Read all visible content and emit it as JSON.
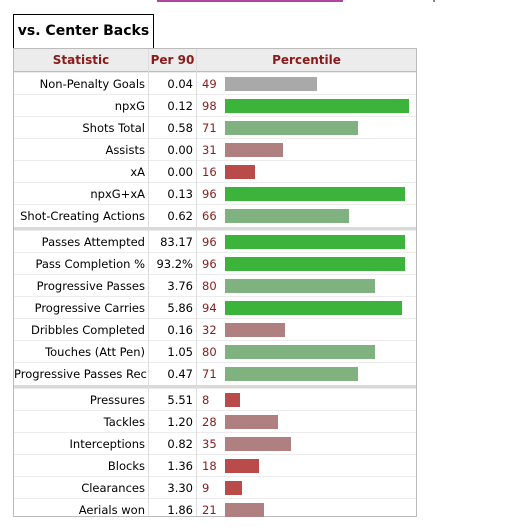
{
  "tab": {
    "label": "vs. Center Backs"
  },
  "table": {
    "headers": {
      "statistic": "Statistic",
      "per90": "Per 90",
      "percentile": "Percentile"
    },
    "groups": [
      [
        {
          "stat": "Non-Penalty Goals",
          "per90": "0.04",
          "pct": "49"
        },
        {
          "stat": "npxG",
          "per90": "0.12",
          "pct": "98"
        },
        {
          "stat": "Shots Total",
          "per90": "0.58",
          "pct": "71"
        },
        {
          "stat": "Assists",
          "per90": "0.00",
          "pct": "31"
        },
        {
          "stat": "xA",
          "per90": "0.00",
          "pct": "16"
        },
        {
          "stat": "npxG+xA",
          "per90": "0.13",
          "pct": "96"
        },
        {
          "stat": "Shot-Creating Actions",
          "per90": "0.62",
          "pct": "66"
        }
      ],
      [
        {
          "stat": "Passes Attempted",
          "per90": "83.17",
          "pct": "96"
        },
        {
          "stat": "Pass Completion %",
          "per90": "93.2%",
          "pct": "96"
        },
        {
          "stat": "Progressive Passes",
          "per90": "3.76",
          "pct": "80"
        },
        {
          "stat": "Progressive Carries",
          "per90": "5.86",
          "pct": "94"
        },
        {
          "stat": "Dribbles Completed",
          "per90": "0.16",
          "pct": "32"
        },
        {
          "stat": "Touches (Att Pen)",
          "per90": "1.05",
          "pct": "80"
        },
        {
          "stat": "Progressive Passes Rec",
          "per90": "0.47",
          "pct": "71"
        }
      ],
      [
        {
          "stat": "Pressures",
          "per90": "5.51",
          "pct": "8"
        },
        {
          "stat": "Tackles",
          "per90": "1.20",
          "pct": "28"
        },
        {
          "stat": "Interceptions",
          "per90": "0.82",
          "pct": "35"
        },
        {
          "stat": "Blocks",
          "per90": "1.36",
          "pct": "18"
        },
        {
          "stat": "Clearances",
          "per90": "3.30",
          "pct": "9"
        },
        {
          "stat": "Aerials won",
          "per90": "1.86",
          "pct": "21"
        }
      ]
    ]
  },
  "colors": {
    "header_text": "#8b1a1a",
    "bar_high": "#3cb43c",
    "bar_mid_high": "#7fb27f",
    "bar_mid": "#a9a9a9",
    "bar_mid_low": "#b08080",
    "bar_low": "#b94b4b"
  }
}
